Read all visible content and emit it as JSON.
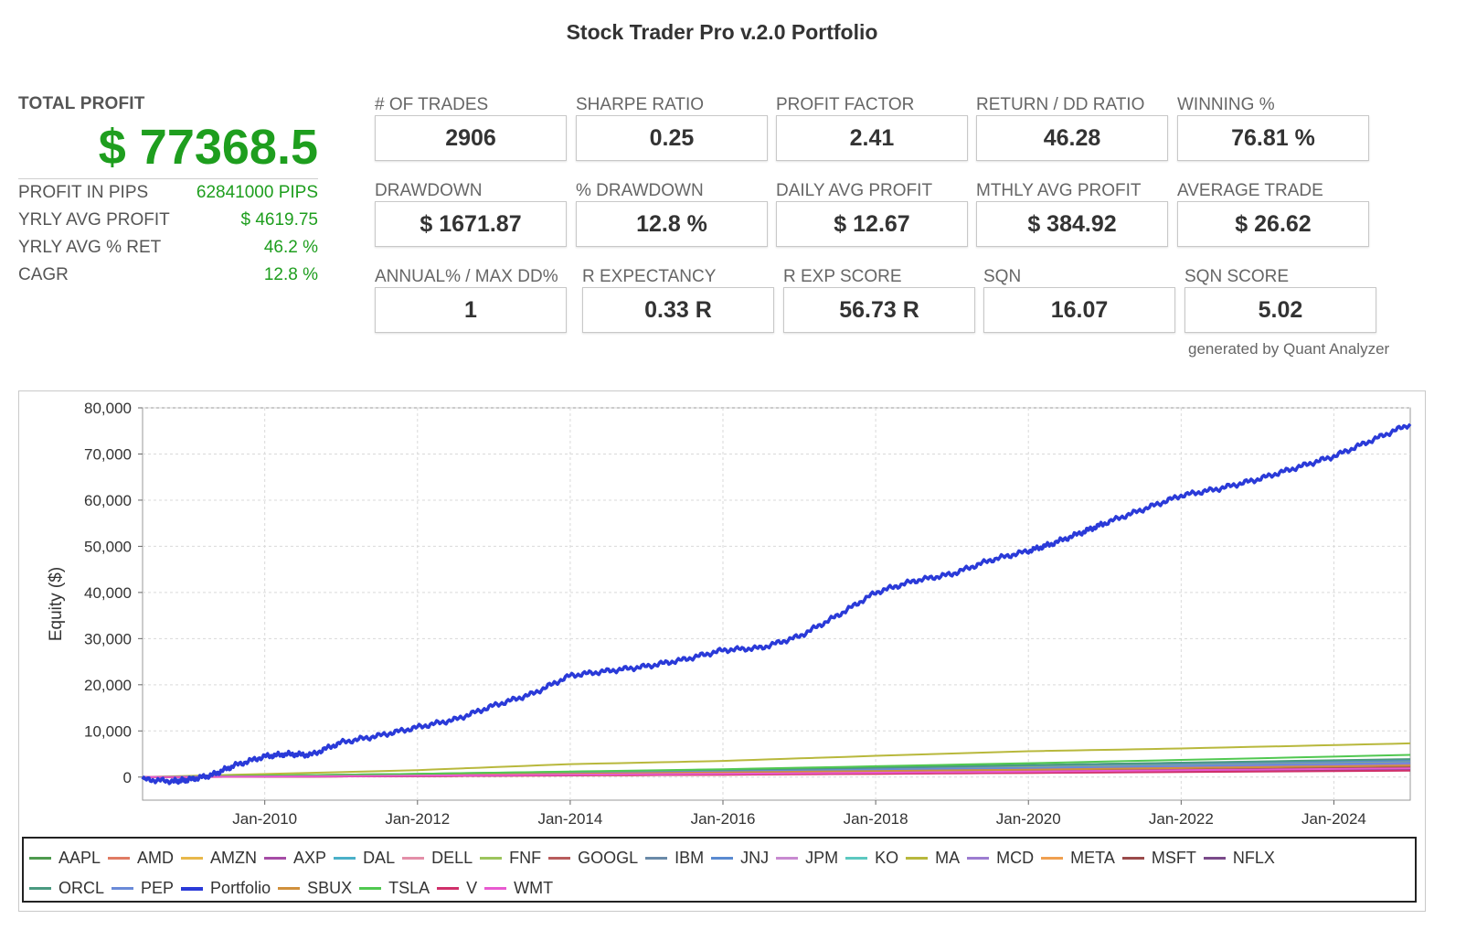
{
  "header": {
    "title": "Stock Trader Pro v.2.0 Portfolio"
  },
  "summary": {
    "total_profit_label": "TOTAL PROFIT",
    "total_profit_value": "$ 77368.5",
    "rows": [
      {
        "label": "PROFIT IN PIPS",
        "value": "62841000 PIPS"
      },
      {
        "label": "YRLY AVG PROFIT",
        "value": "$ 4619.75"
      },
      {
        "label": "YRLY AVG % RET",
        "value": "46.2 %"
      },
      {
        "label": "CAGR",
        "value": "12.8 %"
      }
    ]
  },
  "metrics": [
    {
      "label": "# OF TRADES",
      "value": "2906"
    },
    {
      "label": "SHARPE RATIO",
      "value": "0.25"
    },
    {
      "label": "PROFIT FACTOR",
      "value": "2.41"
    },
    {
      "label": "RETURN / DD RATIO",
      "value": "46.28"
    },
    {
      "label": "WINNING %",
      "value": "76.81 %"
    },
    {
      "label": "DRAWDOWN",
      "value": "$ 1671.87"
    },
    {
      "label": "% DRAWDOWN",
      "value": "12.8 %"
    },
    {
      "label": "DAILY AVG PROFIT",
      "value": "$ 12.67"
    },
    {
      "label": "MTHLY AVG PROFIT",
      "value": "$ 384.92"
    },
    {
      "label": "AVERAGE TRADE",
      "value": "$ 26.62"
    },
    {
      "label": "ANNUAL% / MAX DD%",
      "value": "1"
    },
    {
      "label": "R EXPECTANCY",
      "value": "0.33 R"
    },
    {
      "label": "R EXP SCORE",
      "value": "56.73 R"
    },
    {
      "label": "SQN",
      "value": "16.07"
    },
    {
      "label": "SQN SCORE",
      "value": "5.02"
    }
  ],
  "footer_note": "generated by Quant Analyzer",
  "chart_data": {
    "type": "line",
    "title": "",
    "xlabel": "",
    "ylabel": "Equity ($)",
    "xlim": [
      2008.4,
      2025.0
    ],
    "ylim": [
      -5000,
      80000
    ],
    "yticks": [
      0,
      10000,
      20000,
      30000,
      40000,
      50000,
      60000,
      70000,
      80000
    ],
    "ytick_labels": [
      "0",
      "10,000",
      "20,000",
      "30,000",
      "40,000",
      "50,000",
      "60,000",
      "70,000",
      "80,000"
    ],
    "xticks": [
      2010,
      2012,
      2014,
      2016,
      2018,
      2020,
      2022,
      2024
    ],
    "xtick_labels": [
      "Jan-2010",
      "Jan-2012",
      "Jan-2014",
      "Jan-2016",
      "Jan-2018",
      "Jan-2020",
      "Jan-2022",
      "Jan-2024"
    ],
    "grid": true,
    "legend_position": "bottom",
    "series": [
      {
        "name": "AAPL",
        "color": "#4e9a4e",
        "x": [
          2008.4,
          2012,
          2016,
          2020,
          2025
        ],
        "y": [
          0,
          700,
          1600,
          2600,
          3800
        ]
      },
      {
        "name": "AMD",
        "color": "#e07b63",
        "x": [
          2008.4,
          2012,
          2016,
          2020,
          2025
        ],
        "y": [
          0,
          300,
          800,
          1400,
          2200
        ]
      },
      {
        "name": "AMZN",
        "color": "#e8b84a",
        "x": [
          2008.4,
          2012,
          2016,
          2020,
          2025
        ],
        "y": [
          0,
          500,
          1200,
          2000,
          3000
        ]
      },
      {
        "name": "AXP",
        "color": "#a64ca6",
        "x": [
          2008.4,
          2012,
          2016,
          2020,
          2025
        ],
        "y": [
          0,
          400,
          1000,
          1700,
          2600
        ]
      },
      {
        "name": "DAL",
        "color": "#4ab0c8",
        "x": [
          2008.4,
          2012,
          2016,
          2020,
          2025
        ],
        "y": [
          0,
          600,
          1400,
          2300,
          3400
        ]
      },
      {
        "name": "DELL",
        "color": "#e38fa8",
        "x": [
          2008.4,
          2012,
          2016,
          2020,
          2025
        ],
        "y": [
          0,
          200,
          600,
          1100,
          1800
        ]
      },
      {
        "name": "FNF",
        "color": "#9cc45c",
        "x": [
          2008.4,
          2012,
          2016,
          2020,
          2025
        ],
        "y": [
          0,
          500,
          1300,
          2200,
          3300
        ]
      },
      {
        "name": "GOOGL",
        "color": "#b85c5c",
        "x": [
          2008.4,
          2012,
          2016,
          2020,
          2025
        ],
        "y": [
          0,
          300,
          700,
          1200,
          2000
        ]
      },
      {
        "name": "IBM",
        "color": "#6a8aa8",
        "x": [
          2008.4,
          2012,
          2016,
          2020,
          2025
        ],
        "y": [
          0,
          400,
          900,
          1600,
          2500
        ]
      },
      {
        "name": "JNJ",
        "color": "#5a8ad0",
        "x": [
          2008.4,
          2012,
          2016,
          2020,
          2025
        ],
        "y": [
          0,
          600,
          1500,
          2500,
          3600
        ]
      },
      {
        "name": "JPM",
        "color": "#c88ad0",
        "x": [
          2008.4,
          2012,
          2016,
          2020,
          2025
        ],
        "y": [
          0,
          300,
          800,
          1300,
          2100
        ]
      },
      {
        "name": "KO",
        "color": "#5cc8c0",
        "x": [
          2008.4,
          2012,
          2016,
          2020,
          2025
        ],
        "y": [
          0,
          500,
          1100,
          1900,
          2900
        ]
      },
      {
        "name": "MA",
        "color": "#b8b83c",
        "x": [
          2008.4,
          2012,
          2014,
          2016,
          2018,
          2020,
          2022,
          2025
        ],
        "y": [
          0,
          1500,
          2800,
          3500,
          4600,
          5600,
          6200,
          7300
        ]
      },
      {
        "name": "MCD",
        "color": "#9c7cd0",
        "x": [
          2008.4,
          2012,
          2016,
          2020,
          2025
        ],
        "y": [
          0,
          400,
          1000,
          1800,
          2800
        ]
      },
      {
        "name": "META",
        "color": "#f0a050",
        "x": [
          2008.4,
          2012,
          2016,
          2020,
          2025
        ],
        "y": [
          0,
          200,
          500,
          900,
          1500
        ]
      },
      {
        "name": "MSFT",
        "color": "#9a4a4a",
        "x": [
          2008.4,
          2012,
          2016,
          2020,
          2025
        ],
        "y": [
          0,
          300,
          700,
          1300,
          2100
        ]
      },
      {
        "name": "NFLX",
        "color": "#7a4a8a",
        "x": [
          2008.4,
          2012,
          2016,
          2020,
          2025
        ],
        "y": [
          0,
          200,
          600,
          1000,
          1700
        ]
      },
      {
        "name": "ORCL",
        "color": "#4a9a80",
        "x": [
          2008.4,
          2012,
          2016,
          2020,
          2025
        ],
        "y": [
          0,
          600,
          1500,
          2600,
          3900
        ]
      },
      {
        "name": "PEP",
        "color": "#6a8ad8",
        "x": [
          2008.4,
          2012,
          2016,
          2020,
          2025
        ],
        "y": [
          0,
          500,
          1200,
          2000,
          3100
        ]
      },
      {
        "name": "Portfolio",
        "color": "#2a3ad8",
        "x": [
          2008.4,
          2008.8,
          2009.0,
          2009.3,
          2009.6,
          2010.0,
          2010.3,
          2010.6,
          2011.0,
          2011.5,
          2012.0,
          2012.5,
          2013.0,
          2013.5,
          2014.0,
          2014.5,
          2015.0,
          2015.5,
          2016.0,
          2016.5,
          2017.0,
          2017.5,
          2018.0,
          2018.5,
          2019.0,
          2019.5,
          2020.0,
          2020.3,
          2020.7,
          2021.0,
          2021.5,
          2022.0,
          2022.5,
          2023.0,
          2023.5,
          2024.0,
          2024.5,
          2025.0
        ],
        "y": [
          -500,
          -900,
          -600,
          400,
          2500,
          4500,
          5000,
          4800,
          7500,
          9000,
          10800,
          12500,
          15500,
          18000,
          22000,
          23000,
          24000,
          25500,
          27500,
          28000,
          30500,
          35000,
          40000,
          42500,
          44000,
          47000,
          49000,
          50500,
          53000,
          55000,
          58000,
          61000,
          62500,
          64500,
          67000,
          69500,
          73000,
          76500
        ]
      },
      {
        "name": "SBUX",
        "color": "#d0903c",
        "x": [
          2008.4,
          2012,
          2016,
          2020,
          2025
        ],
        "y": [
          0,
          400,
          1000,
          1600,
          2500
        ]
      },
      {
        "name": "TSLA",
        "color": "#50c850",
        "x": [
          2008.4,
          2012,
          2016,
          2020,
          2025
        ],
        "y": [
          0,
          700,
          1700,
          3000,
          4800
        ]
      },
      {
        "name": "V",
        "color": "#d0306a",
        "x": [
          2008.4,
          2012,
          2016,
          2020,
          2025
        ],
        "y": [
          0,
          200,
          500,
          900,
          1400
        ]
      },
      {
        "name": "WMT",
        "color": "#e85ad0",
        "x": [
          2008.4,
          2012,
          2016,
          2020,
          2025
        ],
        "y": [
          0,
          300,
          700,
          1200,
          1900
        ]
      }
    ]
  }
}
